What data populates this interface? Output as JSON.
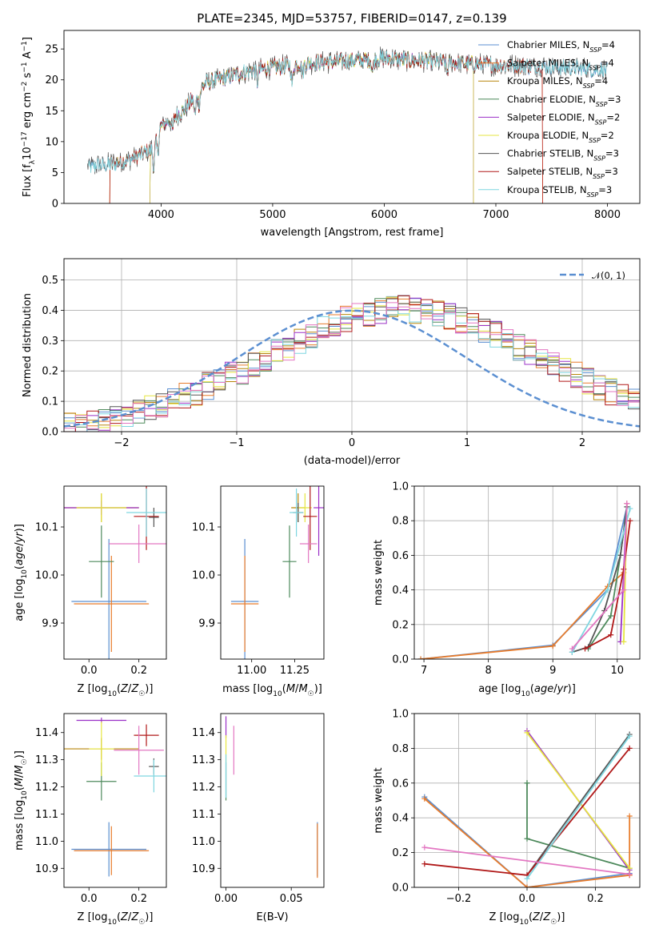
{
  "figure": {
    "title": "PLATE=2345, MJD=53757, FIBERID=0147, z=0.139"
  },
  "palette": {
    "Chabrier MILES": "#5b8fd1",
    "Salpeter MILES": "#e87c2c",
    "Kroupa MILES": "#b8860b",
    "Chabrier ELODIE": "#4e8a5c",
    "Salpeter ELODIE": "#9b30c8",
    "Kroupa ELODIE": "#e6e640",
    "Chabrier STELIB": "#555555",
    "Salpeter STELIB": "#b01818",
    "Kroupa STELIB": "#7fd6e0",
    "pink": "#e377c2",
    "normal": "#5b8fd1"
  },
  "chart_data": [
    {
      "id": "spectrum",
      "type": "line",
      "title": "PLATE=2345, MJD=53757, FIBERID=0147, z=0.139",
      "xlabel": "wavelength [Angstrom, rest frame]",
      "ylabel": "Flux [f_λ 10^-17 erg cm^-2 s^-1 A^-1]",
      "ylabel_parts": [
        "Flux [f",
        "λ",
        "10",
        "−17",
        " erg cm",
        "−2",
        " s",
        "−1",
        " A",
        "−1",
        "]"
      ],
      "xlim": [
        3130,
        8290
      ],
      "ylim": [
        0,
        28
      ],
      "xticks": [
        4000,
        5000,
        6000,
        7000,
        8000
      ],
      "yticks": [
        0,
        5,
        10,
        15,
        20,
        25
      ],
      "legend_position": "upper right",
      "continuum": {
        "x": [
          3340,
          3500,
          3700,
          3900,
          4000,
          4200,
          4400,
          4600,
          4800,
          5000,
          5200,
          5400,
          5600,
          5800,
          6000,
          6200,
          6400,
          6600,
          6800,
          7000,
          7200,
          7400,
          7600,
          7800,
          8000
        ],
        "y": [
          6,
          6.2,
          7,
          8.5,
          12.5,
          15,
          19.5,
          20.5,
          21.5,
          22,
          22.5,
          22.8,
          23,
          23.2,
          23.5,
          23.2,
          23,
          22.8,
          22.5,
          22.4,
          22.3,
          22.2,
          22,
          21.8,
          21.5
        ]
      },
      "series": [
        {
          "name": "Chabrier MILES",
          "nssp": "4",
          "start": 3350,
          "end": 8000
        },
        {
          "name": "Salpeter MILES",
          "nssp": "4",
          "start": 3540,
          "end": 7420
        },
        {
          "name": "Kroupa MILES",
          "nssp": "4",
          "start": 3540,
          "end": 6800
        },
        {
          "name": "Chabrier ELODIE",
          "nssp": "3",
          "start": 3900,
          "end": 6800
        },
        {
          "name": "Salpeter ELODIE",
          "nssp": "2",
          "start": 3900,
          "end": 6800
        },
        {
          "name": "Kroupa ELODIE",
          "nssp": "2",
          "start": 3900,
          "end": 6800
        },
        {
          "name": "Chabrier STELIB",
          "nssp": "3",
          "start": 3340,
          "end": 8000
        },
        {
          "name": "Salpeter STELIB",
          "nssp": "3",
          "start": 3540,
          "end": 7420
        },
        {
          "name": "Kroupa STELIB",
          "nssp": "3",
          "start": 3350,
          "end": 8000
        }
      ],
      "legend_prefix": "N",
      "legend_sub": "SSP",
      "legend_eq": "="
    },
    {
      "id": "residuals",
      "type": "histogram",
      "xlabel": "(data-model)/error",
      "ylabel": "Normed distribution",
      "xlim": [
        -2.5,
        2.5
      ],
      "ylim": [
        0,
        0.57
      ],
      "xticks": [
        -2,
        -1,
        0,
        1,
        2
      ],
      "xtick_labels": [
        "−2",
        "−1",
        "0",
        "1",
        "2"
      ],
      "yticks": [
        0.0,
        0.1,
        0.2,
        0.3,
        0.4,
        0.5
      ],
      "ytick_labels": [
        "0.0",
        "0.1",
        "0.2",
        "0.3",
        "0.4",
        "0.5"
      ],
      "grid": true,
      "legend": "𝒩(0, 1)",
      "legend_position": "upper right",
      "bin_width": 0.1,
      "bin_start": -2.5,
      "profile": [
        0.02,
        0.025,
        0.03,
        0.04,
        0.045,
        0.055,
        0.065,
        0.08,
        0.09,
        0.1,
        0.115,
        0.13,
        0.15,
        0.165,
        0.185,
        0.2,
        0.215,
        0.235,
        0.26,
        0.28,
        0.3,
        0.32,
        0.335,
        0.355,
        0.37,
        0.38,
        0.39,
        0.395,
        0.4,
        0.405,
        0.4,
        0.395,
        0.39,
        0.38,
        0.37,
        0.355,
        0.335,
        0.32,
        0.3,
        0.28,
        0.26,
        0.235,
        0.215,
        0.2,
        0.185,
        0.165,
        0.15,
        0.13,
        0.115,
        0.1
      ],
      "curve": {
        "type": "normal",
        "mean": 0,
        "sigma": 1
      }
    },
    {
      "id": "age-vs-Z",
      "type": "errorbar",
      "xlabel": "Z [log10(Z/Z☉)]",
      "ylabel": "age [log10(age/yr)]",
      "xlim": [
        -0.1,
        0.31
      ],
      "ylim": [
        9.825,
        10.185
      ],
      "xticks": [
        0.0,
        0.2
      ],
      "xtick_labels": [
        "0.0",
        "0.2"
      ],
      "yticks": [
        9.9,
        10.0,
        10.1
      ],
      "yticks_labels": [
        "9.9",
        "10.0",
        "10.1"
      ],
      "points": [
        {
          "series": "Chabrier MILES",
          "x": 0.08,
          "y": 9.945,
          "xerr": 0.15,
          "yerr": 0.13
        },
        {
          "series": "Salpeter MILES",
          "x": 0.09,
          "y": 9.94,
          "xerr": 0.15,
          "yerr": 0.1
        },
        {
          "series": "Kroupa MILES",
          "x": 0.05,
          "y": 10.14,
          "xerr": 0.15,
          "yerr": 0.03
        },
        {
          "series": "Chabrier ELODIE",
          "x": 0.05,
          "y": 10.028,
          "xerr": 0.05,
          "yerr": 0.075
        },
        {
          "series": "Salpeter ELODIE",
          "x": 0.05,
          "y": 10.14,
          "xerr": 0.15,
          "yerr": 0.015
        },
        {
          "series": "Kroupa ELODIE",
          "x": 0.05,
          "y": 10.14,
          "xerr": 0.1,
          "yerr": 0.03
        },
        {
          "series": "Chabrier STELIB",
          "x": 0.26,
          "y": 10.12,
          "xerr": 0.02,
          "yerr": 0.02
        },
        {
          "series": "Salpeter STELIB",
          "x": 0.23,
          "y": 10.122,
          "xerr": 0.05,
          "yerr": 0.07
        },
        {
          "series": "Kroupa STELIB",
          "x": 0.23,
          "y": 10.13,
          "xerr": 0.08,
          "yerr": 0.05
        },
        {
          "series": "pink",
          "x": 0.2,
          "y": 10.065,
          "xerr": 0.12,
          "yerr": 0.04
        }
      ]
    },
    {
      "id": "age-vs-mass",
      "type": "errorbar",
      "xlabel": "mass [log10(M/M☉)]",
      "xlim": [
        10.82,
        11.42
      ],
      "ylim": [
        9.825,
        10.185
      ],
      "xticks": [
        11.0,
        11.25
      ],
      "xtick_labels": [
        "11.00",
        "11.25"
      ],
      "yticks": [
        9.9,
        10.0,
        10.1
      ],
      "yticks_labels": [
        "9.9",
        "10.0",
        "10.1"
      ],
      "points": [
        {
          "series": "Chabrier MILES",
          "x": 10.96,
          "y": 9.945,
          "xerr": 0.08,
          "yerr": 0.13
        },
        {
          "series": "Salpeter MILES",
          "x": 10.96,
          "y": 9.94,
          "xerr": 0.08,
          "yerr": 0.1
        },
        {
          "series": "Kroupa MILES",
          "x": 11.27,
          "y": 10.14,
          "xerr": 0.04,
          "yerr": 0.03
        },
        {
          "series": "Chabrier ELODIE",
          "x": 11.22,
          "y": 10.028,
          "xerr": 0.04,
          "yerr": 0.075
        },
        {
          "series": "Salpeter ELODIE",
          "x": 11.39,
          "y": 10.14,
          "xerr": 0.03,
          "yerr": 0.1
        },
        {
          "series": "Kroupa ELODIE",
          "x": 11.31,
          "y": 10.14,
          "xerr": 0.04,
          "yerr": 0.03
        },
        {
          "series": "Chabrier STELIB",
          "x": 11.27,
          "y": 10.13,
          "xerr": 0.03,
          "yerr": 0.02
        },
        {
          "series": "Salpeter STELIB",
          "x": 11.34,
          "y": 10.122,
          "xerr": 0.04,
          "yerr": 0.07
        },
        {
          "series": "Kroupa STELIB",
          "x": 11.26,
          "y": 10.13,
          "xerr": 0.04,
          "yerr": 0.05
        },
        {
          "series": "pink",
          "x": 11.33,
          "y": 10.065,
          "xerr": 0.05,
          "yerr": 0.04
        }
      ]
    },
    {
      "id": "massweight-vs-age",
      "type": "line",
      "xlabel": "age [log10(age/yr)]",
      "ylabel": "mass weight",
      "xlim": [
        6.85,
        10.35
      ],
      "ylim": [
        0,
        1
      ],
      "xticks": [
        7,
        8,
        9,
        10
      ],
      "yticks": [
        0.0,
        0.2,
        0.4,
        0.6,
        0.8,
        1.0
      ],
      "yticks_labels": [
        "0.0",
        "0.2",
        "0.4",
        "0.6",
        "0.8",
        "1.0"
      ],
      "grid": true,
      "series": [
        {
          "series": "Chabrier MILES",
          "x": [
            6.95,
            9.0,
            9.85,
            10.15
          ],
          "y": [
            0.0,
            0.08,
            0.4,
            0.88
          ]
        },
        {
          "series": "Salpeter MILES",
          "x": [
            6.95,
            9.0,
            9.85,
            10.1
          ],
          "y": [
            0.0,
            0.075,
            0.42,
            0.5
          ]
        },
        {
          "series": "Chabrier ELODIE",
          "x": [
            9.55,
            9.9,
            10.05,
            10.15
          ],
          "y": [
            0.06,
            0.25,
            0.6,
            0.88
          ]
        },
        {
          "series": "Salpeter ELODIE",
          "x": [
            10.05,
            10.15
          ],
          "y": [
            0.1,
            0.9
          ]
        },
        {
          "series": "Kroupa ELODIE",
          "x": [
            10.1,
            10.15
          ],
          "y": [
            0.1,
            0.9
          ]
        },
        {
          "series": "Chabrier STELIB",
          "x": [
            9.3,
            9.55,
            9.8,
            10.05,
            10.15
          ],
          "y": [
            0.04,
            0.07,
            0.28,
            0.6,
            0.88
          ]
        },
        {
          "series": "Salpeter STELIB",
          "x": [
            9.5,
            9.9,
            10.1,
            10.2
          ],
          "y": [
            0.06,
            0.14,
            0.52,
            0.8
          ]
        },
        {
          "series": "Kroupa STELIB",
          "x": [
            9.3,
            9.85,
            10.2
          ],
          "y": [
            0.04,
            0.4,
            0.87
          ]
        },
        {
          "series": "pink",
          "x": [
            9.3,
            10.1,
            10.15
          ],
          "y": [
            0.06,
            0.4,
            0.9
          ]
        }
      ]
    },
    {
      "id": "mass-vs-Z",
      "type": "errorbar",
      "xlabel": "Z [log10(Z/Z☉)]",
      "ylabel": "mass [log10(M/M☉)]",
      "xlim": [
        -0.1,
        0.31
      ],
      "ylim": [
        10.83,
        11.47
      ],
      "xticks": [
        0.0,
        0.2
      ],
      "xtick_labels": [
        "0.0",
        "0.2"
      ],
      "yticks": [
        10.9,
        11.0,
        11.1,
        11.2,
        11.3,
        11.4
      ],
      "yticks_labels": [
        "10.9",
        "11.0",
        "11.1",
        "11.2",
        "11.3",
        "11.4"
      ],
      "points": [
        {
          "series": "Chabrier MILES",
          "x": 0.08,
          "y": 10.97,
          "xerr": 0.15,
          "yerr": 0.1
        },
        {
          "series": "Salpeter MILES",
          "x": 0.09,
          "y": 10.965,
          "xerr": 0.15,
          "yerr": 0.09
        },
        {
          "series": "Kroupa MILES",
          "x": 0.05,
          "y": 11.34,
          "xerr": 0.15,
          "yerr": 0.04
        },
        {
          "series": "Chabrier ELODIE",
          "x": 0.05,
          "y": 11.22,
          "xerr": 0.06,
          "yerr": 0.07
        },
        {
          "series": "Salpeter ELODIE",
          "x": 0.05,
          "y": 11.445,
          "xerr": 0.1,
          "yerr": 0.01
        },
        {
          "series": "Kroupa ELODIE",
          "x": 0.05,
          "y": 11.34,
          "xerr": 0.05,
          "yerr": 0.1
        },
        {
          "series": "Chabrier STELIB",
          "x": 0.26,
          "y": 11.275,
          "xerr": 0.02,
          "yerr": 0.03
        },
        {
          "series": "Salpeter STELIB",
          "x": 0.23,
          "y": 11.39,
          "xerr": 0.05,
          "yerr": 0.04
        },
        {
          "series": "Kroupa STELIB",
          "x": 0.26,
          "y": 11.24,
          "xerr": 0.08,
          "yerr": 0.06
        },
        {
          "series": "pink",
          "x": 0.2,
          "y": 11.335,
          "xerr": 0.1,
          "yerr": 0.09
        }
      ]
    },
    {
      "id": "mass-vs-ebv",
      "type": "errorbar",
      "xlabel": "E(B-V)",
      "xlim": [
        -0.004,
        0.075
      ],
      "ylim": [
        10.83,
        11.47
      ],
      "xticks": [
        0.0,
        0.05
      ],
      "xtick_labels": [
        "0.00",
        "0.05"
      ],
      "yticks": [
        10.9,
        11.0,
        11.1,
        11.2,
        11.3,
        11.4
      ],
      "yticks_labels": [
        "10.9",
        "11.0",
        "11.1",
        "11.2",
        "11.3",
        "11.4"
      ],
      "points": [
        {
          "series": "Chabrier MILES",
          "x": 0.07,
          "y": 10.97,
          "xerr": 0,
          "yerr": 0.1
        },
        {
          "series": "Salpeter MILES",
          "x": 0.07,
          "y": 10.965,
          "xerr": 0,
          "yerr": 0.1
        },
        {
          "series": "Salpeter ELODIE",
          "x": 0.0,
          "y": 11.42,
          "xerr": 0,
          "yerr": 0.04
        },
        {
          "series": "Kroupa ELODIE",
          "x": 0.0,
          "y": 11.34,
          "xerr": 0,
          "yerr": 0.05
        },
        {
          "series": "Chabrier ELODIE",
          "x": 0.0,
          "y": 11.22,
          "xerr": 0,
          "yerr": 0.07
        },
        {
          "series": "Kroupa STELIB",
          "x": 0.0,
          "y": 11.24,
          "xerr": 0,
          "yerr": 0.08
        },
        {
          "series": "pink",
          "x": 0.006,
          "y": 11.335,
          "xerr": 0,
          "yerr": 0.09
        }
      ]
    },
    {
      "id": "massweight-vs-Z",
      "type": "line",
      "xlabel": "Z [log10(Z/Z☉)]",
      "ylabel": "mass weight",
      "xlim": [
        -0.33,
        0.33
      ],
      "ylim": [
        0,
        1
      ],
      "xticks": [
        -0.2,
        0.0,
        0.2
      ],
      "xtick_labels": [
        "−0.2",
        "0.0",
        "0.2"
      ],
      "yticks": [
        0.0,
        0.2,
        0.4,
        0.6,
        0.8,
        1.0
      ],
      "yticks_labels": [
        "0.0",
        "0.2",
        "0.4",
        "0.6",
        "0.8",
        "1.0"
      ],
      "grid": true,
      "series": [
        {
          "series": "Chabrier MILES",
          "x": [
            -0.3,
            0.0,
            0.3
          ],
          "y": [
            0.52,
            0.0,
            0.08
          ]
        },
        {
          "series": "Salpeter MILES",
          "x": [
            -0.3,
            0.0,
            0.3
          ],
          "y": [
            0.51,
            0.0,
            0.07
          ]
        },
        {
          "series": "Salpeter MILES",
          "x": [
            0.3,
            0.3
          ],
          "y": [
            0.07,
            0.41
          ]
        },
        {
          "series": "Chabrier ELODIE",
          "x": [
            0.0,
            0.0,
            0.0,
            0.3
          ],
          "y": [
            0.6,
            0.6,
            0.28,
            0.11
          ]
        },
        {
          "series": "Salpeter ELODIE",
          "x": [
            0.0,
            0.3
          ],
          "y": [
            0.9,
            0.1
          ]
        },
        {
          "series": "Kroupa ELODIE",
          "x": [
            0.0,
            0.3
          ],
          "y": [
            0.89,
            0.11
          ]
        },
        {
          "series": "Chabrier STELIB",
          "x": [
            0.0,
            0.3
          ],
          "y": [
            0.07,
            0.88
          ]
        },
        {
          "series": "Salpeter STELIB",
          "x": [
            -0.3,
            0.0,
            0.3
          ],
          "y": [
            0.135,
            0.07,
            0.8
          ]
        },
        {
          "series": "Kroupa STELIB",
          "x": [
            0.0,
            0.3
          ],
          "y": [
            0.05,
            0.87
          ]
        },
        {
          "series": "pink",
          "x": [
            -0.3,
            0.3
          ],
          "y": [
            0.23,
            0.075
          ]
        }
      ]
    }
  ]
}
